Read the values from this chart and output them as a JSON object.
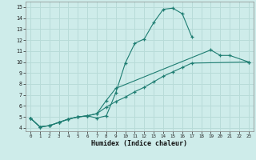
{
  "xlabel": "Humidex (Indice chaleur)",
  "background_color": "#ceecea",
  "grid_color": "#b8dbd8",
  "line_color": "#1e7d72",
  "xlim": [
    -0.5,
    23.5
  ],
  "ylim": [
    3.7,
    15.5
  ],
  "xticks": [
    0,
    1,
    2,
    3,
    4,
    5,
    6,
    7,
    8,
    9,
    10,
    11,
    12,
    13,
    14,
    15,
    16,
    17,
    18,
    19,
    20,
    21,
    22,
    23
  ],
  "yticks": [
    4,
    5,
    6,
    7,
    8,
    9,
    10,
    11,
    12,
    13,
    14,
    15
  ],
  "line1_x": [
    0,
    1,
    2,
    3,
    4,
    5,
    6,
    7,
    8,
    9,
    10,
    11,
    12,
    13,
    14,
    15,
    16,
    17
  ],
  "line1_y": [
    4.9,
    4.1,
    4.2,
    4.5,
    4.8,
    5.0,
    5.1,
    4.9,
    5.1,
    7.2,
    9.9,
    11.7,
    12.1,
    13.6,
    14.8,
    14.9,
    14.4,
    12.3
  ],
  "line2_x": [
    0,
    1,
    2,
    3,
    4,
    5,
    6,
    7,
    8,
    9,
    19,
    20,
    21,
    23
  ],
  "line2_y": [
    4.9,
    4.1,
    4.2,
    4.5,
    4.8,
    5.0,
    5.1,
    5.3,
    6.5,
    7.6,
    11.1,
    10.6,
    10.6,
    10.0
  ],
  "line3_x": [
    0,
    1,
    2,
    3,
    4,
    5,
    6,
    7,
    8,
    9,
    10,
    11,
    12,
    13,
    14,
    15,
    16,
    17,
    23
  ],
  "line3_y": [
    4.9,
    4.1,
    4.2,
    4.5,
    4.8,
    5.0,
    5.1,
    5.3,
    5.9,
    6.4,
    6.8,
    7.3,
    7.7,
    8.2,
    8.7,
    9.1,
    9.5,
    9.9,
    10.0
  ]
}
